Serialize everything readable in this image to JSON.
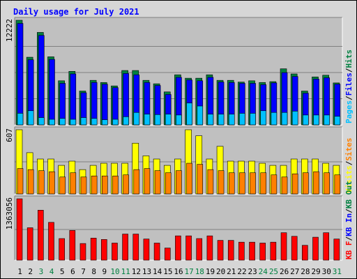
{
  "chart_data": {
    "type": "bar",
    "title": "Daily usage for July 2021",
    "categories": [
      "1",
      "2",
      "3",
      "4",
      "5",
      "6",
      "7",
      "8",
      "9",
      "10",
      "11",
      "12",
      "13",
      "14",
      "15",
      "16",
      "17",
      "18",
      "19",
      "20",
      "21",
      "22",
      "23",
      "24",
      "25",
      "26",
      "27",
      "28",
      "29",
      "30",
      "31"
    ],
    "weekend_days": [
      "3",
      "4",
      "10",
      "11",
      "17",
      "18",
      "24",
      "25",
      "31"
    ],
    "panels": [
      {
        "id": "hits_files_pages",
        "axis_max_label": "12222",
        "ylim": [
          0,
          12222
        ],
        "series": [
          {
            "name": "Hits",
            "color": "#008040",
            "values": [
              12222,
              7900,
              10800,
              7950,
              5150,
              6250,
              3950,
              5200,
              4950,
              4550,
              6350,
              6350,
              5200,
              4800,
              3850,
              5850,
              5450,
              5450,
              5850,
              5200,
              5200,
              5000,
              5150,
              4950,
              5050,
              6550,
              5950,
              3950,
              5600,
              5800,
              4900
            ]
          },
          {
            "name": "Files",
            "color": "#0000ff",
            "values": [
              11850,
              7600,
              10450,
              7650,
              4850,
              5950,
              3750,
              4950,
              4750,
              4350,
              6000,
              5850,
              4950,
              4600,
              3550,
              5550,
              5250,
              5150,
              5550,
              5000,
              4950,
              4850,
              4850,
              4700,
              4900,
              6100,
              5650,
              3700,
              5350,
              5500,
              4750
            ]
          },
          {
            "name": "Pages",
            "color": "#00c0ff",
            "values": [
              1350,
              1650,
              850,
              650,
              750,
              650,
              850,
              750,
              600,
              650,
              950,
              1450,
              1250,
              1200,
              1250,
              1150,
              2550,
              2200,
              1250,
              1250,
              1250,
              1350,
              1350,
              1650,
              1450,
              1450,
              1600,
              1150,
              1150,
              1150,
              1000
            ]
          }
        ]
      },
      {
        "id": "visits_sites",
        "axis_max_label": "607",
        "ylim": [
          0,
          607
        ],
        "series": [
          {
            "name": "Visits",
            "color": "#ffff00",
            "values": [
              607,
              390,
              330,
              330,
              270,
              310,
              230,
              270,
              290,
              290,
              290,
              480,
              360,
              330,
              270,
              330,
              607,
              550,
              330,
              450,
              310,
              310,
              310,
              290,
              270,
              270,
              330,
              330,
              330,
              290,
              270
            ]
          },
          {
            "name": "Sites",
            "color": "#ff8000",
            "values": [
              240,
              230,
              220,
              210,
              160,
              200,
              160,
              170,
              170,
              170,
              180,
              230,
              240,
              220,
              200,
              220,
              290,
              280,
              230,
              220,
              200,
              200,
              200,
              200,
              180,
              160,
              190,
              200,
              210,
              200,
              180
            ]
          }
        ]
      },
      {
        "id": "kbytes",
        "axis_max_label": "1363056",
        "ylim": [
          0,
          1363056
        ],
        "series": [
          {
            "name": "KB F",
            "color": "#ff0000",
            "values": [
              1363056,
              720000,
              1110000,
              840000,
              480000,
              660000,
              370000,
              490000,
              460000,
              380000,
              580000,
              580000,
              470000,
              380000,
              270000,
              540000,
              540000,
              480000,
              540000,
              440000,
              440000,
              400000,
              400000,
              380000,
              400000,
              610000,
              530000,
              330000,
              510000,
              610000,
              470000
            ]
          },
          {
            "name": "KB In",
            "color": "#0000ff",
            "values": []
          },
          {
            "name": "KB Out",
            "color": "#008040",
            "values": []
          }
        ]
      }
    ],
    "right_labels": [
      [
        "Pages",
        "/",
        "Files",
        "/",
        "Hits"
      ],
      [
        "Visits",
        "/",
        "Sites"
      ],
      [
        "KB F",
        "/",
        "KB In",
        "/",
        "KB Out"
      ]
    ],
    "colors": {
      "title": "#0000ff",
      "axis_text": "#000000",
      "weekend_text": "#008040",
      "separator_text": "#000000",
      "plot_bg": "#c0c0c0",
      "frame_bg": "#d6d6d6",
      "gridline": "#808080"
    }
  }
}
